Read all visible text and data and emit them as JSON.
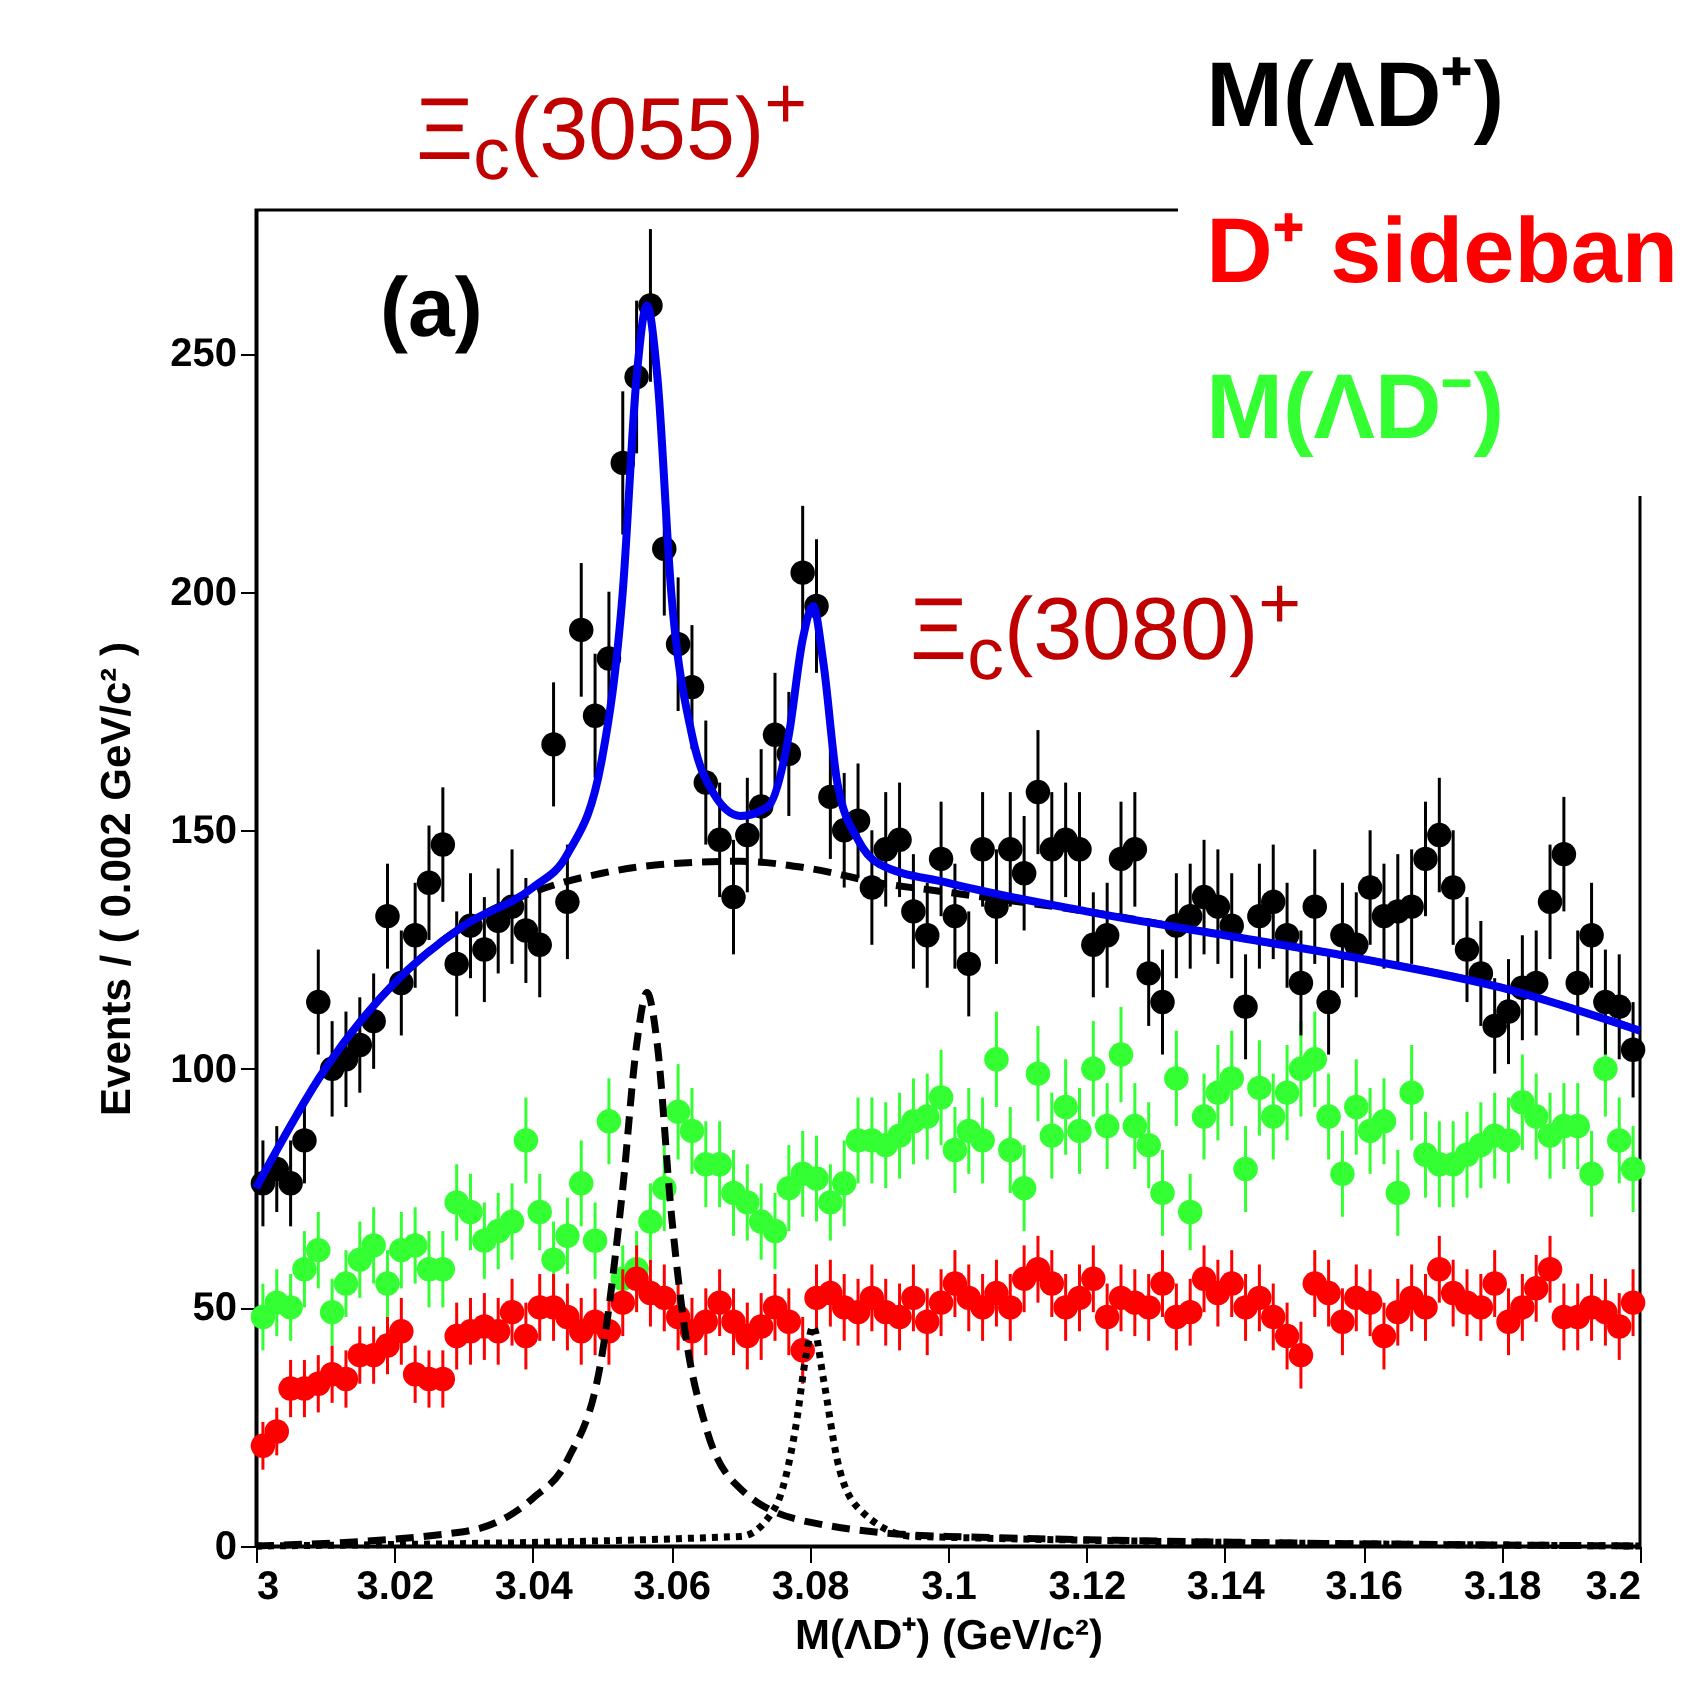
{
  "chart_data": {
    "type": "scatter",
    "xlabel": "M(ΛD⁺) (GeV/c²)",
    "ylabel": "Events / ( 0.002 GeV/c² )",
    "annotations": [
      "(a)",
      "Ξ$_{c}$(3055)$^{+}$",
      "Ξ$_{c}$(3080)$^{+}$"
    ],
    "x": [
      3.001,
      3.003,
      3.005,
      3.007,
      3.009,
      3.011,
      3.013,
      3.015,
      3.017,
      3.019,
      3.021,
      3.023,
      3.025,
      3.027,
      3.029,
      3.031,
      3.033,
      3.035,
      3.037,
      3.039,
      3.041,
      3.043,
      3.045,
      3.047,
      3.049,
      3.051,
      3.053,
      3.055,
      3.057,
      3.059,
      3.061,
      3.063,
      3.065,
      3.067,
      3.069,
      3.071,
      3.073,
      3.075,
      3.077,
      3.079,
      3.081,
      3.083,
      3.085,
      3.087,
      3.089,
      3.091,
      3.093,
      3.095,
      3.097,
      3.099,
      3.101,
      3.103,
      3.105,
      3.107,
      3.109,
      3.111,
      3.113,
      3.115,
      3.117,
      3.119,
      3.121,
      3.123,
      3.125,
      3.127,
      3.129,
      3.131,
      3.133,
      3.135,
      3.137,
      3.139,
      3.141,
      3.143,
      3.145,
      3.147,
      3.149,
      3.151,
      3.153,
      3.155,
      3.157,
      3.159,
      3.161,
      3.163,
      3.165,
      3.167,
      3.169,
      3.171,
      3.173,
      3.175,
      3.177,
      3.179,
      3.181,
      3.183,
      3.185,
      3.187,
      3.189,
      3.191,
      3.193,
      3.195,
      3.197,
      3.199
    ],
    "series": [
      {
        "name": "M(ΛD⁻)",
        "color": "#33ff33",
        "values": [
          48,
          51,
          50,
          58,
          62,
          49,
          55,
          60,
          63,
          55,
          62,
          63,
          58,
          58,
          72,
          70,
          64,
          66,
          68,
          85,
          70,
          60,
          65,
          76,
          64,
          89,
          56,
          58,
          68,
          75,
          91,
          87,
          80,
          80,
          74,
          72,
          68,
          66,
          75,
          78,
          77,
          72,
          76,
          85,
          85,
          84,
          86,
          89,
          90,
          94,
          83,
          87,
          85,
          102,
          83,
          75,
          99,
          86,
          92,
          87,
          100,
          88,
          103,
          88,
          84,
          74,
          98,
          70,
          90,
          95,
          98,
          79,
          96,
          90,
          95,
          100,
          102,
          90,
          78,
          92,
          87,
          89,
          74,
          95,
          82,
          80,
          80,
          82,
          84,
          86,
          85,
          93,
          90,
          86,
          88,
          88,
          78,
          100,
          85,
          79
        ],
        "errors": [
          7,
          7,
          7,
          8,
          8,
          7,
          7,
          8,
          8,
          7,
          8,
          8,
          8,
          8,
          8,
          8,
          8,
          8,
          8,
          9,
          8,
          8,
          8,
          9,
          8,
          9,
          7,
          8,
          8,
          9,
          10,
          9,
          9,
          9,
          9,
          8,
          8,
          8,
          9,
          9,
          9,
          8,
          9,
          9,
          9,
          9,
          9,
          9,
          9,
          10,
          9,
          9,
          9,
          10,
          9,
          9,
          10,
          9,
          10,
          9,
          10,
          9,
          10,
          9,
          9,
          9,
          10,
          8,
          9,
          10,
          10,
          9,
          10,
          9,
          10,
          10,
          10,
          9,
          9,
          10,
          9,
          9,
          9,
          10,
          9,
          9,
          9,
          9,
          9,
          9,
          9,
          10,
          9,
          9,
          9,
          9,
          9,
          10,
          9,
          9
        ]
      },
      {
        "name": "D⁺ sideban",
        "color": "#ff0000",
        "values": [
          21,
          24,
          33,
          33,
          34,
          36,
          35,
          40,
          40,
          42,
          45,
          36,
          35,
          35,
          44,
          45,
          46,
          45,
          49,
          44,
          50,
          50,
          48,
          45,
          47,
          45,
          51,
          56,
          53,
          52,
          48,
          45,
          47,
          51,
          47,
          44,
          46,
          50,
          47,
          41,
          52,
          53,
          50,
          49,
          52,
          49,
          48,
          52,
          47,
          51,
          55,
          52,
          50,
          53,
          50,
          56,
          58,
          55,
          50,
          52,
          56,
          48,
          52,
          51,
          50,
          55,
          48,
          49,
          56,
          53,
          55,
          50,
          52,
          48,
          44,
          40,
          55,
          53,
          47,
          52,
          51,
          44,
          49,
          52,
          50,
          58,
          53,
          51,
          50,
          55,
          47,
          50,
          54,
          58,
          48,
          48,
          50,
          49,
          46,
          51
        ],
        "errors": [
          5,
          5,
          6,
          6,
          6,
          6,
          6,
          6,
          6,
          6,
          7,
          6,
          6,
          6,
          7,
          7,
          7,
          7,
          7,
          7,
          7,
          7,
          7,
          7,
          7,
          7,
          7,
          7,
          7,
          7,
          7,
          7,
          7,
          7,
          7,
          7,
          7,
          7,
          7,
          7,
          7,
          7,
          7,
          7,
          7,
          7,
          7,
          7,
          7,
          7,
          7,
          7,
          7,
          7,
          7,
          7,
          7,
          7,
          7,
          7,
          7,
          7,
          7,
          7,
          7,
          7,
          7,
          7,
          7,
          7,
          7,
          7,
          7,
          7,
          7,
          7,
          7,
          7,
          7,
          7,
          7,
          7,
          7,
          7,
          7,
          7,
          7,
          7,
          7,
          7,
          7,
          7,
          7,
          7,
          7,
          7,
          7,
          7,
          7,
          7
        ]
      },
      {
        "type": "line",
        "marker": "none",
        "color": "#000000",
        "line_style": "dashed",
        "x": [
          3.0,
          3.03,
          3.04,
          3.045,
          3.05,
          3.053,
          3.055,
          3.0565,
          3.058,
          3.06,
          3.062,
          3.065,
          3.07,
          3.08,
          3.1,
          3.2
        ],
        "values": [
          0,
          3,
          10,
          18,
          40,
          75,
          105,
          116,
          105,
          70,
          45,
          25,
          12,
          5,
          2,
          0
        ]
      },
      {
        "type": "line",
        "marker": "none",
        "color": "#000000",
        "line_style": "dotted",
        "x": [
          3.0,
          3.07,
          3.075,
          3.078,
          3.0795,
          3.0805,
          3.082,
          3.084,
          3.087,
          3.095,
          3.2
        ],
        "values": [
          0,
          2,
          8,
          25,
          40,
          46,
          35,
          18,
          8,
          2,
          0
        ]
      },
      {
        "name": "M(ΛD⁺)",
        "color": "#000000",
        "values": [
          76,
          79,
          76,
          85,
          114,
          100,
          102,
          105,
          110,
          132,
          118,
          128,
          139,
          147,
          122,
          130,
          125,
          131,
          134,
          129,
          126,
          168,
          135,
          192,
          174,
          186,
          227,
          245,
          260,
          209,
          189,
          180,
          160,
          148,
          136,
          149,
          155,
          170,
          166,
          204,
          197,
          157,
          150,
          152,
          138,
          146,
          148,
          133,
          128,
          144,
          132,
          122,
          146,
          134,
          146,
          141,
          158,
          146,
          148,
          146,
          126,
          128,
          144,
          146,
          120,
          114,
          130,
          132,
          136,
          134,
          130,
          113,
          132,
          135,
          128,
          118,
          134,
          114,
          128,
          126,
          138,
          132,
          133,
          134,
          144,
          149,
          138,
          125,
          120,
          109,
          112,
          117,
          118,
          135,
          145,
          118,
          128,
          114,
          113,
          104
        ],
        "errors": [
          9,
          9,
          9,
          9,
          11,
          10,
          10,
          10,
          10,
          11,
          11,
          11,
          12,
          12,
          11,
          11,
          11,
          11,
          12,
          11,
          11,
          13,
          12,
          14,
          13,
          14,
          15,
          16,
          16,
          14,
          14,
          13,
          13,
          12,
          12,
          12,
          12,
          13,
          13,
          14,
          14,
          13,
          12,
          12,
          12,
          12,
          12,
          12,
          11,
          12,
          11,
          11,
          12,
          12,
          12,
          12,
          13,
          12,
          12,
          12,
          11,
          11,
          12,
          12,
          11,
          11,
          11,
          11,
          12,
          12,
          11,
          11,
          11,
          12,
          11,
          11,
          12,
          11,
          11,
          11,
          12,
          11,
          12,
          12,
          12,
          12,
          12,
          11,
          11,
          10,
          11,
          11,
          11,
          12,
          12,
          11,
          11,
          11,
          11,
          10
        ]
      },
      {
        "type": "line",
        "marker": "none",
        "color": "#000000",
        "line_style": "dashed",
        "x": [
          3.0,
          3.01,
          3.02,
          3.03,
          3.04,
          3.05,
          3.06,
          3.07,
          3.08,
          3.09,
          3.1,
          3.12,
          3.14,
          3.16,
          3.18,
          3.2
        ],
        "values": [
          75,
          100,
          118,
          130,
          137,
          141,
          143,
          143.5,
          142,
          139,
          137,
          133,
          128,
          123,
          117,
          108
        ]
      },
      {
        "type": "line",
        "marker": "none",
        "color": "#0000ee",
        "line_style": "solid",
        "x": [
          3.0,
          3.01,
          3.02,
          3.03,
          3.04,
          3.045,
          3.05,
          3.053,
          3.055,
          3.0565,
          3.058,
          3.06,
          3.063,
          3.066,
          3.07,
          3.074,
          3.077,
          3.079,
          3.0805,
          3.082,
          3.084,
          3.087,
          3.09,
          3.1,
          3.12,
          3.14,
          3.16,
          3.18,
          3.2
        ],
        "values": [
          75,
          100,
          118,
          130,
          138,
          145,
          165,
          200,
          245,
          260,
          245,
          200,
          170,
          158,
          153,
          155,
          170,
          190,
          197,
          185,
          160,
          148,
          143,
          139,
          133,
          128,
          123,
          117,
          108
        ]
      }
    ],
    "xlim": [
      3.0,
      3.2
    ],
    "xticks": [
      3,
      3.02,
      3.04,
      3.06,
      3.08,
      3.1,
      3.12,
      3.14,
      3.16,
      3.18,
      3.2
    ],
    "ylim": [
      0,
      280
    ],
    "yticks": [
      0,
      50,
      100,
      150,
      200,
      250
    ],
    "legend": "top right",
    "marker": "circle"
  }
}
